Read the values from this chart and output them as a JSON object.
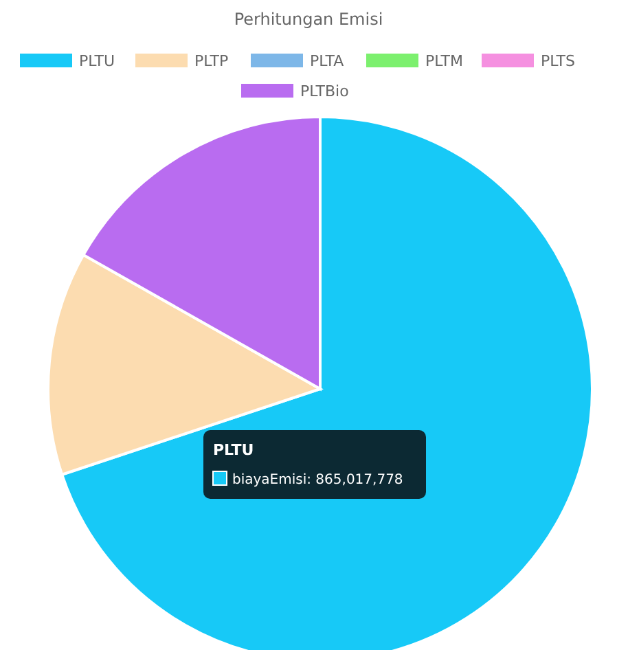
{
  "chart_data": {
    "type": "pie",
    "title": "Perhitungan Emisi",
    "categories": [
      "PLTU",
      "PLTP",
      "PLTA",
      "PLTM",
      "PLTS",
      "PLTBio"
    ],
    "values": [
      69.9,
      13.3,
      0,
      0,
      0,
      16.8
    ],
    "colors": [
      "#17c9f7",
      "#fcdcb0",
      "#7db7e8",
      "#7cf06e",
      "#f590e0",
      "#b96cf0"
    ],
    "legend": "top",
    "annotations": [
      "PLTU",
      "biayaEmisi: 865,017,778"
    ]
  }
}
